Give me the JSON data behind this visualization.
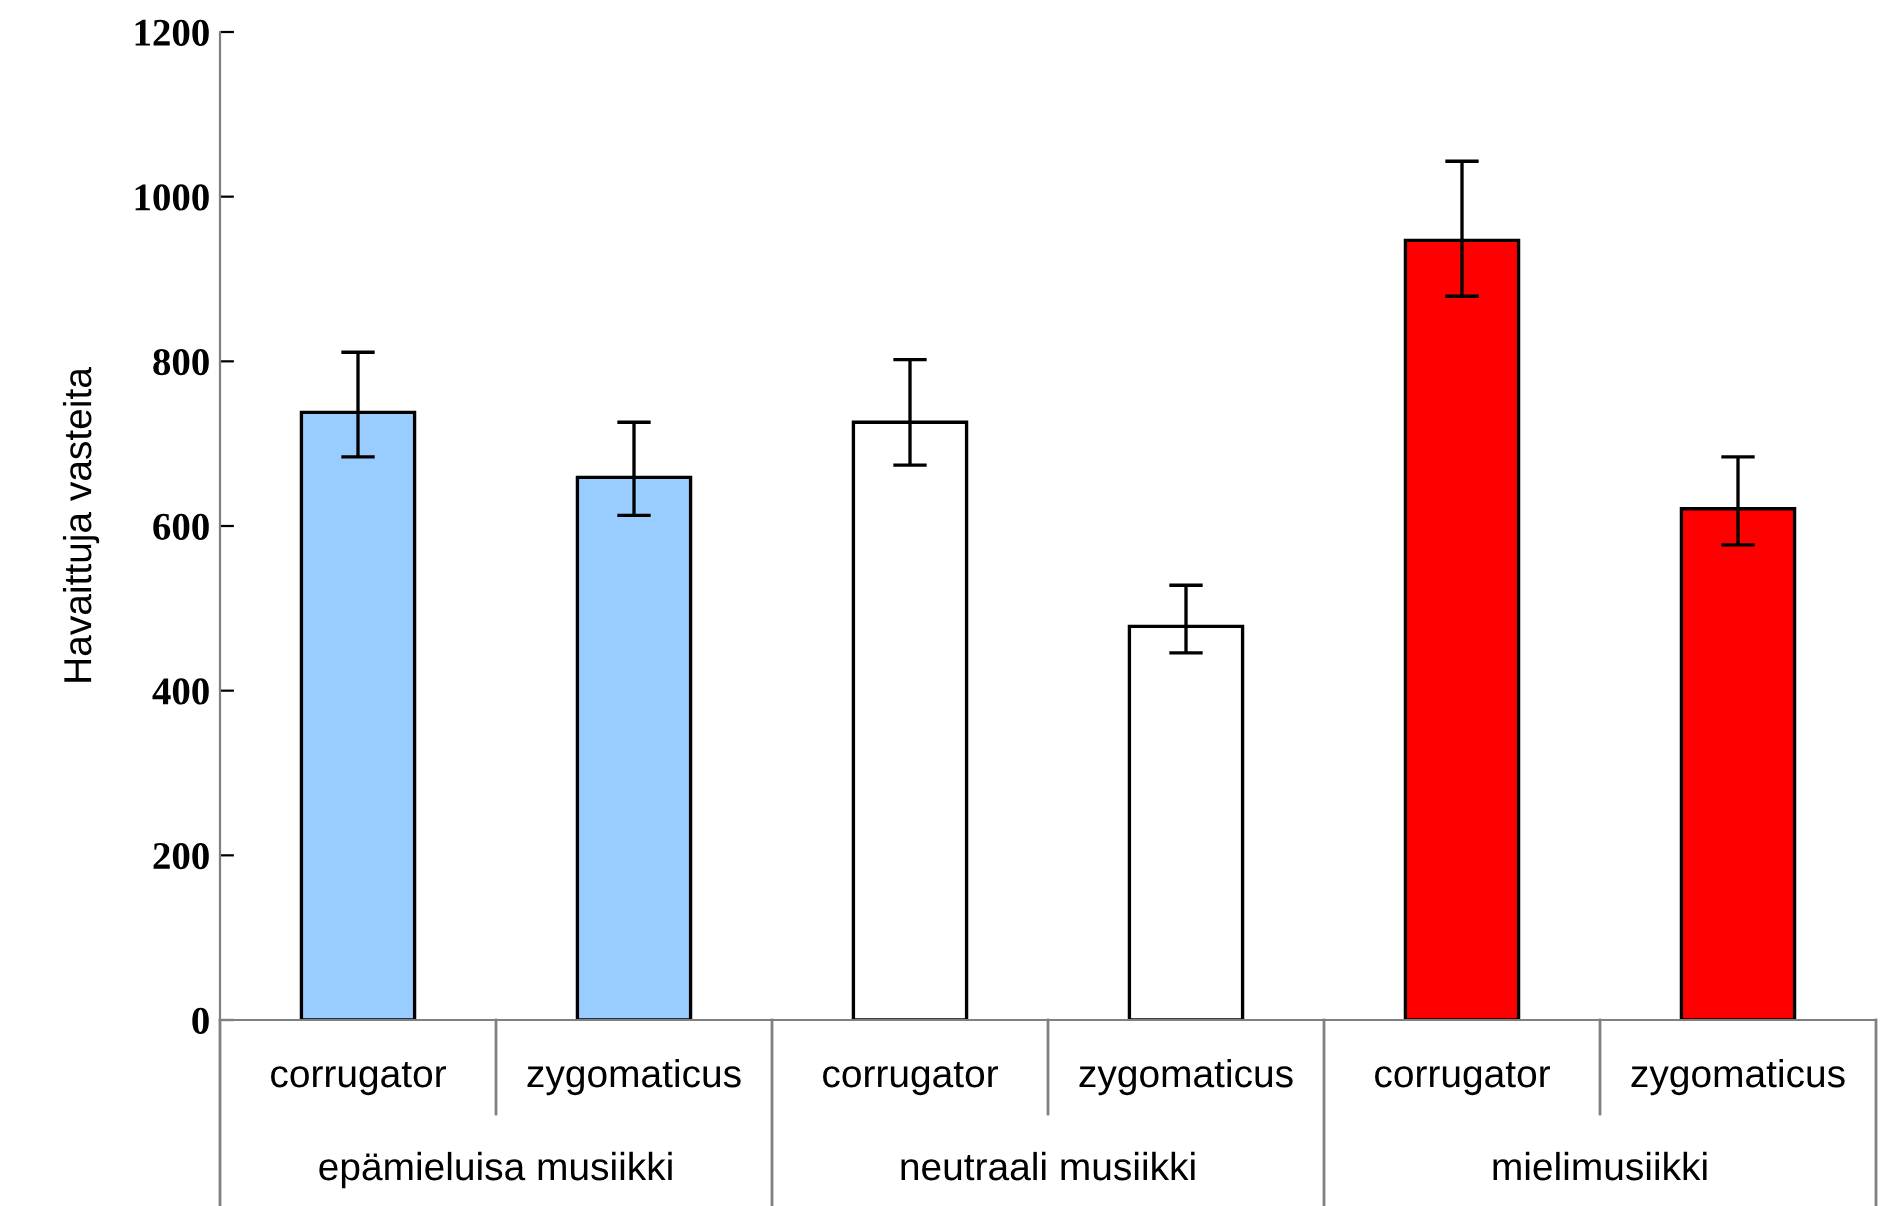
{
  "chart_data": {
    "type": "bar",
    "ylabel": "Havaittuja vasteita",
    "categories": [
      "corrugator",
      "zygomaticus",
      "corrugator",
      "zygomaticus",
      "corrugator",
      "zygomaticus"
    ],
    "values": [
      738,
      659,
      726,
      478,
      947,
      621
    ],
    "errors": [
      [
        684,
        811
      ],
      [
        613,
        726
      ],
      [
        674,
        802
      ],
      [
        446,
        528
      ],
      [
        879,
        1043
      ],
      [
        577,
        684
      ]
    ],
    "colors": [
      "#99ccff",
      "#99ccff",
      "#ffffff",
      "#ffffff",
      "#ff0000",
      "#ff0000"
    ],
    "annotations": [
      "epämieluisa musiikki",
      "neutraali musiikki",
      "mielimusiikki"
    ],
    "ylim": [
      0,
      1200
    ],
    "yticks": [
      0,
      200,
      400,
      600,
      800,
      1000,
      1200
    ],
    "grid": false,
    "legend": false
  }
}
